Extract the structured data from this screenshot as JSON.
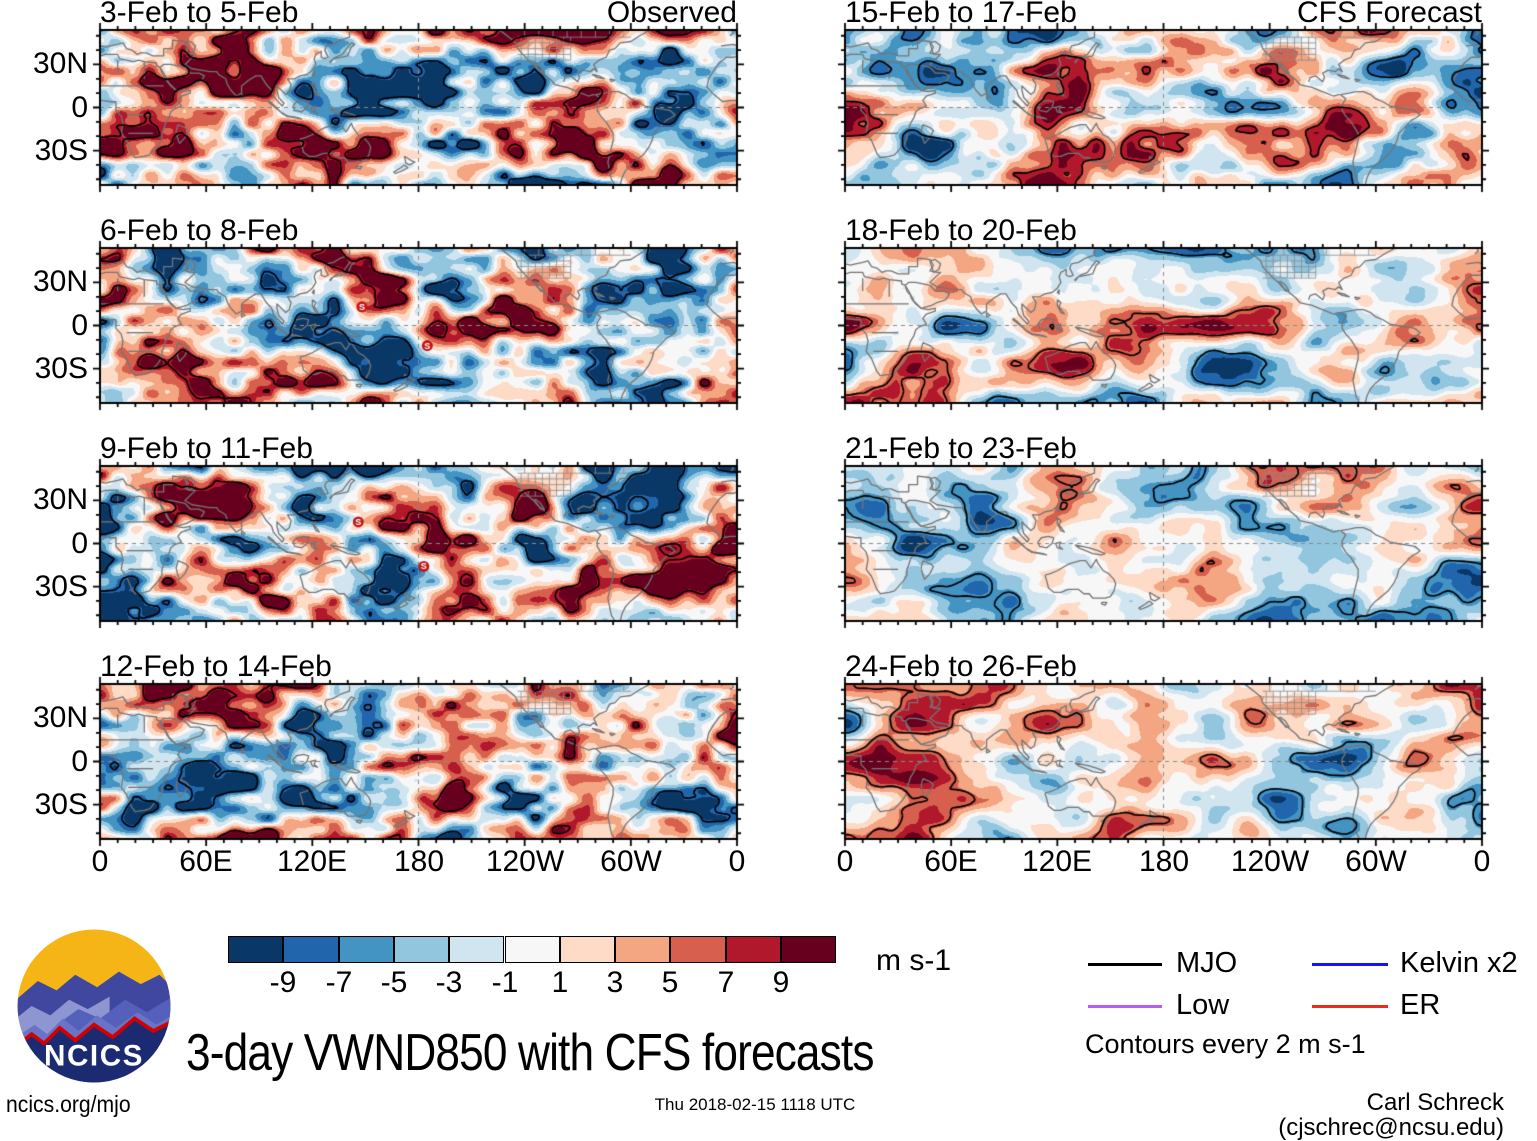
{
  "figure": {
    "title": "3-day VWND850 with CFS forecasts",
    "left_column_header": "Observed",
    "right_column_header": "CFS Forecast"
  },
  "panels": [
    {
      "title": "3-Feb to 5-Feb",
      "corner_label": "Observed",
      "column": 0,
      "row": 0,
      "storms": []
    },
    {
      "title": "6-Feb to 8-Feb",
      "corner_label": "",
      "column": 0,
      "row": 1,
      "storms": [
        {
          "lon": 148,
          "lat": 13
        },
        {
          "lon": 185,
          "lat": -14
        }
      ]
    },
    {
      "title": "9-Feb to 11-Feb",
      "corner_label": "",
      "column": 0,
      "row": 2,
      "storms": [
        {
          "lon": 146,
          "lat": 15
        },
        {
          "lon": 183,
          "lat": -16
        }
      ]
    },
    {
      "title": "12-Feb to 14-Feb",
      "corner_label": "",
      "column": 0,
      "row": 3,
      "storms": []
    },
    {
      "title": "15-Feb to 17-Feb",
      "corner_label": "CFS Forecast",
      "column": 1,
      "row": 0,
      "storms": []
    },
    {
      "title": "18-Feb to 20-Feb",
      "corner_label": "",
      "column": 1,
      "row": 1,
      "storms": []
    },
    {
      "title": "21-Feb to 23-Feb",
      "corner_label": "",
      "column": 1,
      "row": 2,
      "storms": []
    },
    {
      "title": "24-Feb to 26-Feb",
      "corner_label": "",
      "column": 1,
      "row": 3,
      "storms": []
    }
  ],
  "axes": {
    "x_tick_labels": [
      "0",
      "60E",
      "120E",
      "180",
      "120W",
      "60W",
      "0"
    ],
    "y_tick_labels": [
      "30N",
      "0",
      "30S"
    ],
    "lon_range": [
      0,
      360
    ],
    "lat_range": [
      -54,
      54
    ]
  },
  "colorbar": {
    "tick_labels": [
      "-9",
      "-7",
      "-5",
      "-3",
      "-1",
      "1",
      "3",
      "5",
      "7",
      "9"
    ],
    "levels": [
      -9,
      -7,
      -5,
      -3,
      -1,
      1,
      3,
      5,
      7,
      9
    ],
    "colors": [
      "#0a3866",
      "#2166ac",
      "#4393c3",
      "#92c5de",
      "#d1e5f0",
      "#f7f7f7",
      "#fddbc7",
      "#f4a582",
      "#d6604d",
      "#b2182b",
      "#67001f"
    ],
    "unit": "m s-1"
  },
  "legend": {
    "items": [
      {
        "label": "MJO",
        "color": "#000000"
      },
      {
        "label": "Kelvin x2",
        "color": "#1515ee"
      },
      {
        "label": "Low",
        "color": "#b45ef2"
      },
      {
        "label": "ER",
        "color": "#ee2a1a"
      }
    ],
    "note": "Contours every 2 m s-1"
  },
  "logo": {
    "text": "NCICS"
  },
  "footer": {
    "left": "ncics.org/mjo",
    "center": "Thu 2018-02-15 1118 UTC",
    "right": "Carl Schreck (cjschrec@ncsu.edu)"
  },
  "chart_data": {
    "type": "heatmap",
    "description": "Eight filled-contour world maps of 850 hPa meridional wind anomaly (VWND850), 3-day means; left column observed, right column CFS forecast",
    "panels": [
      {
        "title": "3-Feb to 5-Feb",
        "kind": "Observed"
      },
      {
        "title": "6-Feb to 8-Feb",
        "kind": "Observed"
      },
      {
        "title": "9-Feb to 11-Feb",
        "kind": "Observed"
      },
      {
        "title": "12-Feb to 14-Feb",
        "kind": "Observed"
      },
      {
        "title": "15-Feb to 17-Feb",
        "kind": "CFS Forecast"
      },
      {
        "title": "18-Feb to 20-Feb",
        "kind": "CFS Forecast"
      },
      {
        "title": "21-Feb to 23-Feb",
        "kind": "CFS Forecast"
      },
      {
        "title": "24-Feb to 26-Feb",
        "kind": "CFS Forecast"
      }
    ],
    "x_ticks": [
      "0",
      "60E",
      "120E",
      "180",
      "120W",
      "60W",
      "0"
    ],
    "y_ticks": [
      "30N",
      "0",
      "30S"
    ],
    "color_scale_levels": [
      -9,
      -7,
      -5,
      -3,
      -1,
      1,
      3,
      5,
      7,
      9
    ],
    "color_scale_unit": "m s-1",
    "contour_interval": "2 m s-1",
    "overlay_contours": [
      "MJO",
      "Kelvin x2",
      "Low",
      "ER"
    ]
  }
}
